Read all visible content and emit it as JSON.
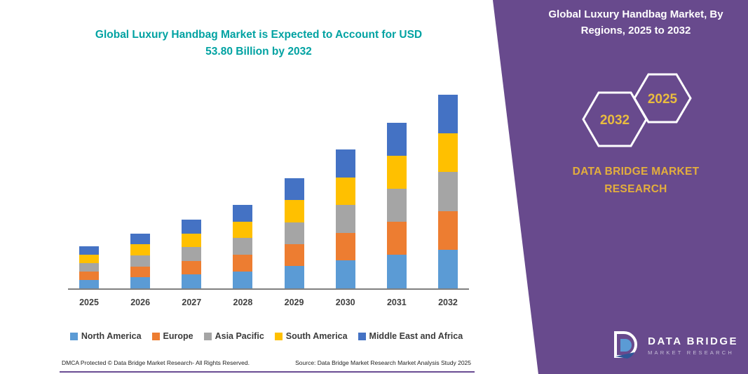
{
  "header": {
    "title_line1": "Global Luxury Handbag Market is Expected to Account for USD",
    "title_line2": "53.80 Billion by 2032"
  },
  "panel": {
    "title": "Global Luxury Handbag Market, By Regions, 2025 to 2032",
    "badge_back": "2032",
    "badge_front": "2025",
    "brand_text": "DATA BRIDGE MARKET RESEARCH",
    "logo_title": "DATA BRIDGE",
    "logo_subtitle": "MARKET RESEARCH",
    "background_color": "#684A8D",
    "accent_gold": "#E3AE3D"
  },
  "footer": {
    "dmca": "DMCA Protected © Data Bridge Market Research-  All Rights Reserved.",
    "source": "Source: Data Bridge Market Research  Market Analysis Study 2025"
  },
  "colors": {
    "title_teal": "#00A2A2",
    "axis_line": "#808080",
    "legend_text": "#3B3B3B",
    "bottom_line": "#6A4C93"
  },
  "chart_data": {
    "type": "bar",
    "stacked": true,
    "title": "Global Luxury Handbag Market is Expected to Account for USD 53.80 Billion by 2032",
    "unit": "USD Billion",
    "categories": [
      "2025",
      "2026",
      "2027",
      "2028",
      "2029",
      "2030",
      "2031",
      "2032"
    ],
    "series": [
      {
        "name": "North America",
        "color": "#5B9BD5",
        "values": [
          2.4,
          3.1,
          3.9,
          4.7,
          6.2,
          7.8,
          9.3,
          10.8
        ]
      },
      {
        "name": "Europe",
        "color": "#ED7D31",
        "values": [
          2.3,
          3.0,
          3.8,
          4.6,
          6.1,
          7.7,
          9.2,
          10.7
        ]
      },
      {
        "name": "Asia Pacific",
        "color": "#A5A5A5",
        "values": [
          2.4,
          3.1,
          3.8,
          4.7,
          6.1,
          7.7,
          9.2,
          10.8
        ]
      },
      {
        "name": "South America",
        "color": "#FFC000",
        "values": [
          2.3,
          3.0,
          3.8,
          4.6,
          6.1,
          7.7,
          9.2,
          10.7
        ]
      },
      {
        "name": "Middle East and Africa",
        "color": "#4472C4",
        "values": [
          2.3,
          3.0,
          3.8,
          4.6,
          6.1,
          7.7,
          9.1,
          10.8
        ]
      }
    ],
    "totals": [
      11.7,
      15.2,
      19.1,
      23.2,
      30.6,
      38.6,
      46.0,
      53.8
    ],
    "ylim": [
      0,
      55
    ],
    "grid": false,
    "legend_position": "bottom"
  }
}
